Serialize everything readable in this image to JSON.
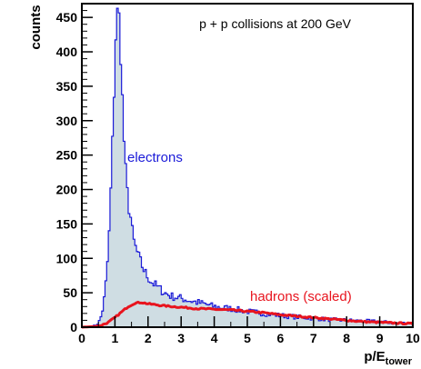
{
  "chart_data": {
    "type": "histogram",
    "title": "",
    "annotation": "p + p collisions at 200 GeV",
    "xlabel": {
      "main": "p/E",
      "sub": "tower"
    },
    "ylabel": "counts",
    "xlim": [
      0,
      10
    ],
    "ylim": [
      0,
      470
    ],
    "xticks": [
      0,
      1,
      2,
      3,
      4,
      5,
      6,
      7,
      8,
      9,
      10
    ],
    "yticks": [
      0,
      50,
      100,
      150,
      200,
      250,
      300,
      350,
      400,
      450
    ],
    "grid": false,
    "bin_width": 0.05,
    "series": [
      {
        "name": "electrons",
        "color": "#1a1ad8",
        "fill": "#cfdde3",
        "style": "histogram-filled",
        "points": [
          [
            0.0,
            0
          ],
          [
            0.3,
            0
          ],
          [
            0.45,
            4
          ],
          [
            0.55,
            10
          ],
          [
            0.65,
            30
          ],
          [
            0.75,
            75
          ],
          [
            0.82,
            130
          ],
          [
            0.88,
            205
          ],
          [
            0.93,
            275
          ],
          [
            0.98,
            350
          ],
          [
            1.03,
            430
          ],
          [
            1.08,
            458
          ],
          [
            1.13,
            448
          ],
          [
            1.18,
            392
          ],
          [
            1.23,
            325
          ],
          [
            1.28,
            265
          ],
          [
            1.33,
            222
          ],
          [
            1.38,
            192
          ],
          [
            1.43,
            172
          ],
          [
            1.48,
            158
          ],
          [
            1.55,
            128
          ],
          [
            1.65,
            112
          ],
          [
            1.75,
            98
          ],
          [
            1.85,
            86
          ],
          [
            1.95,
            76
          ],
          [
            2.1,
            66
          ],
          [
            2.3,
            58
          ],
          [
            2.5,
            50
          ],
          [
            2.7,
            45
          ],
          [
            3.0,
            42
          ],
          [
            3.3,
            38
          ],
          [
            3.6,
            35
          ],
          [
            4.0,
            30
          ],
          [
            4.5,
            27
          ],
          [
            5.0,
            23
          ],
          [
            5.5,
            20
          ],
          [
            6.0,
            17
          ],
          [
            6.5,
            15
          ],
          [
            7.0,
            13
          ],
          [
            7.5,
            11
          ],
          [
            8.0,
            10
          ],
          [
            8.5,
            9
          ],
          [
            9.0,
            8
          ],
          [
            9.5,
            6
          ],
          [
            10.0,
            6
          ]
        ]
      },
      {
        "name": "hadrons (scaled)",
        "color": "#e8141e",
        "style": "line",
        "points": [
          [
            0.0,
            0
          ],
          [
            0.4,
            1
          ],
          [
            0.6,
            3
          ],
          [
            0.8,
            7
          ],
          [
            1.0,
            14
          ],
          [
            1.2,
            22
          ],
          [
            1.4,
            30
          ],
          [
            1.6,
            35
          ],
          [
            1.8,
            36
          ],
          [
            2.0,
            34
          ],
          [
            2.5,
            31
          ],
          [
            3.0,
            29
          ],
          [
            3.5,
            27
          ],
          [
            4.0,
            26
          ],
          [
            4.5,
            25
          ],
          [
            5.0,
            23
          ],
          [
            5.5,
            21
          ],
          [
            6.0,
            18
          ],
          [
            6.5,
            16
          ],
          [
            7.0,
            14
          ],
          [
            7.5,
            12
          ],
          [
            8.0,
            10
          ],
          [
            8.5,
            8
          ],
          [
            9.0,
            7
          ],
          [
            9.5,
            6
          ],
          [
            10.0,
            5
          ]
        ]
      }
    ]
  }
}
